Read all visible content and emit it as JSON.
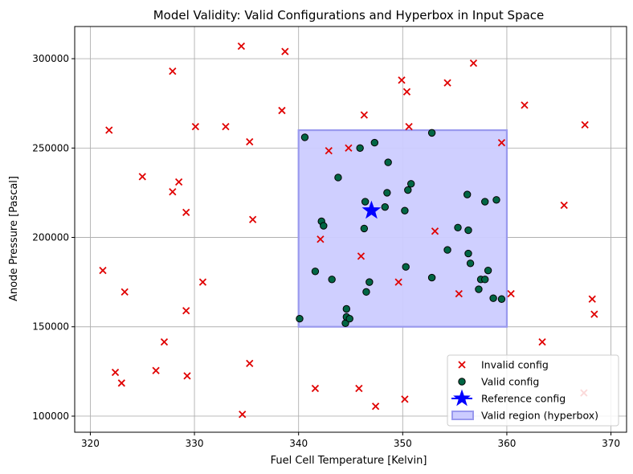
{
  "chart_data": {
    "type": "scatter",
    "title": "Model Validity: Valid Configurations and Hyperbox in Input Space",
    "xlabel": "Fuel Cell Temperature [Kelvin]",
    "ylabel": "Anode Pressure [Pascal]",
    "xlim": [
      318.5,
      371.5
    ],
    "ylim": [
      91000,
      318000
    ],
    "xticks": [
      320,
      330,
      340,
      350,
      360,
      370
    ],
    "yticks": [
      100000,
      150000,
      200000,
      250000,
      300000
    ],
    "ytick_labels": [
      "100000",
      "150000",
      "200000",
      "250000",
      "300000"
    ],
    "grid": true,
    "legend_position": "lower-right",
    "colors": {
      "invalid": "#e00000",
      "valid_fill": "#006644",
      "reference": "#0000ff",
      "hyperbox_fill": "#ccccff",
      "hyperbox_edge": "#9a9aee",
      "grid": "#b0b0b0"
    },
    "hyperbox": {
      "x": [
        340,
        360
      ],
      "y": [
        150000,
        260000
      ],
      "label": "Valid region (hyperbox)"
    },
    "reference": {
      "name": "Reference config",
      "x": 347.0,
      "y": 215000
    },
    "series": [
      {
        "name": "Invalid config",
        "marker": "x",
        "points": [
          [
            321.8,
            260000
          ],
          [
            321.2,
            181500
          ],
          [
            323.3,
            169500
          ],
          [
            322.4,
            124500
          ],
          [
            323.0,
            118500
          ],
          [
            325.0,
            234000
          ],
          [
            327.9,
            293000
          ],
          [
            327.9,
            225500
          ],
          [
            328.5,
            231000
          ],
          [
            329.2,
            214000
          ],
          [
            326.3,
            125500
          ],
          [
            327.1,
            141500
          ],
          [
            329.3,
            122500
          ],
          [
            329.2,
            159000
          ],
          [
            330.1,
            262000
          ],
          [
            330.8,
            175000
          ],
          [
            333.0,
            262000
          ],
          [
            334.5,
            307000
          ],
          [
            335.3,
            253500
          ],
          [
            335.6,
            210000
          ],
          [
            335.3,
            129500
          ],
          [
            334.6,
            101000
          ],
          [
            338.4,
            271000
          ],
          [
            338.7,
            304000
          ],
          [
            341.6,
            115500
          ],
          [
            342.1,
            199000
          ],
          [
            342.9,
            248500
          ],
          [
            344.8,
            250000
          ],
          [
            346.0,
            189500
          ],
          [
            346.3,
            268500
          ],
          [
            345.8,
            115500
          ],
          [
            347.4,
            105500
          ],
          [
            349.6,
            175000
          ],
          [
            349.9,
            288000
          ],
          [
            350.2,
            109500
          ],
          [
            350.4,
            281500
          ],
          [
            350.6,
            262000
          ],
          [
            353.1,
            203500
          ],
          [
            354.3,
            286500
          ],
          [
            355.4,
            168500
          ],
          [
            356.8,
            297500
          ],
          [
            359.5,
            253000
          ],
          [
            360.4,
            168500
          ],
          [
            361.7,
            274000
          ],
          [
            363.4,
            141500
          ],
          [
            365.5,
            218000
          ],
          [
            367.5,
            263000
          ],
          [
            367.4,
            113000
          ],
          [
            368.2,
            165500
          ],
          [
            368.4,
            157000
          ]
        ]
      },
      {
        "name": "Valid config",
        "marker": "o",
        "points": [
          [
            340.6,
            256000
          ],
          [
            340.1,
            154500
          ],
          [
            341.6,
            181000
          ],
          [
            342.2,
            209000
          ],
          [
            342.4,
            206500
          ],
          [
            343.2,
            176500
          ],
          [
            343.8,
            233500
          ],
          [
            344.5,
            152000
          ],
          [
            344.6,
            160000
          ],
          [
            344.6,
            155500
          ],
          [
            344.9,
            154500
          ],
          [
            345.9,
            250000
          ],
          [
            346.3,
            205000
          ],
          [
            346.4,
            220000
          ],
          [
            346.5,
            169500
          ],
          [
            346.8,
            175000
          ],
          [
            347.3,
            253000
          ],
          [
            348.3,
            217000
          ],
          [
            348.5,
            225000
          ],
          [
            348.6,
            242000
          ],
          [
            350.2,
            215000
          ],
          [
            350.3,
            183500
          ],
          [
            350.5,
            226500
          ],
          [
            350.8,
            230000
          ],
          [
            352.8,
            258500
          ],
          [
            352.8,
            177500
          ],
          [
            354.3,
            193000
          ],
          [
            355.3,
            205500
          ],
          [
            356.2,
            224000
          ],
          [
            356.3,
            204000
          ],
          [
            356.3,
            191000
          ],
          [
            356.5,
            185500
          ],
          [
            357.3,
            171000
          ],
          [
            357.5,
            176500
          ],
          [
            357.9,
            176500
          ],
          [
            357.9,
            220000
          ],
          [
            358.2,
            181500
          ],
          [
            358.7,
            166000
          ],
          [
            359.0,
            221000
          ],
          [
            359.5,
            165500
          ]
        ]
      }
    ],
    "legend": [
      {
        "key": "invalid",
        "label": "Invalid config"
      },
      {
        "key": "valid",
        "label": "Valid config"
      },
      {
        "key": "reference",
        "label": "Reference config"
      },
      {
        "key": "hyperbox",
        "label": "Valid region (hyperbox)"
      }
    ]
  }
}
